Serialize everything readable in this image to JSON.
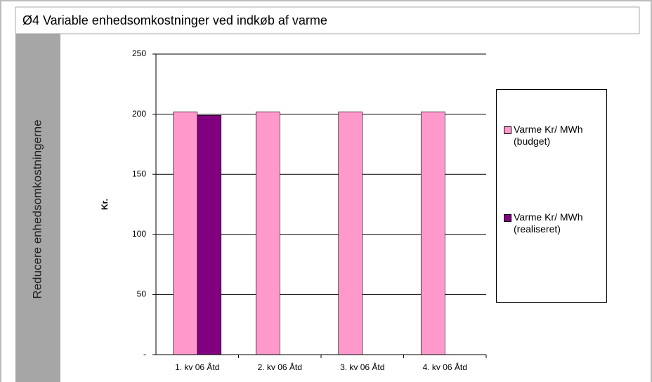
{
  "header": {
    "title": "Ø4 Variable enhedsomkostninger ved indkøb af varme"
  },
  "sidebar": {
    "label": "Reducere enhedsomkostningerne"
  },
  "chart_data": {
    "type": "bar",
    "ylabel": "Kr.",
    "categories": [
      "1. kv 06 Åtd",
      "2. kv 06 Åtd",
      "3. kv 06 Åtd",
      "4. kv 06 Åtd"
    ],
    "series": [
      {
        "name": "Varme Kr/ MWh (budget)",
        "color": "#ff99cc",
        "values": [
          202,
          202,
          202,
          202
        ]
      },
      {
        "name": "Varme Kr/ MWh (realiseret)",
        "color": "#800080",
        "values": [
          199,
          null,
          null,
          null
        ]
      }
    ],
    "ylim": [
      0,
      250
    ],
    "yticks": [
      {
        "value": 0,
        "label": "-"
      },
      50,
      100,
      150,
      200,
      250
    ],
    "grid": true,
    "legend": "right"
  }
}
